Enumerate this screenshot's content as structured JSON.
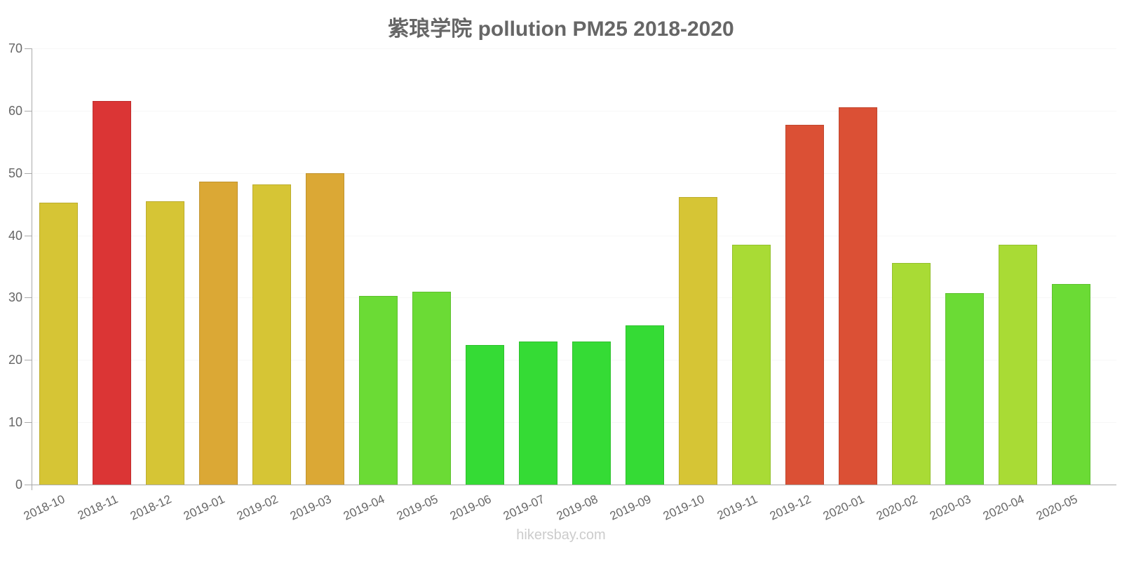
{
  "chart_data": {
    "type": "bar",
    "title": "紫琅学院 pollution PM25 2018-2020",
    "xlabel": "",
    "ylabel": "",
    "ylim": [
      0,
      70
    ],
    "yticks": [
      0,
      10,
      20,
      30,
      40,
      50,
      60,
      70
    ],
    "grid": true,
    "legend": null,
    "categories": [
      "2018-10",
      "2018-11",
      "2018-12",
      "2019-01",
      "2019-02",
      "2019-03",
      "2019-04",
      "2019-05",
      "2019-06",
      "2019-07",
      "2019-08",
      "2019-09",
      "2019-10",
      "2019-11",
      "2019-12",
      "2020-01",
      "2020-02",
      "2020-03",
      "2020-04",
      "2020-05"
    ],
    "values": [
      45.2,
      61.6,
      45.5,
      48.6,
      48.2,
      50.0,
      30.3,
      30.9,
      22.4,
      23.0,
      23.0,
      25.5,
      46.1,
      38.5,
      57.7,
      60.5,
      35.6,
      30.7,
      38.5,
      32.2
    ],
    "colors": [
      "#d6c535",
      "#db3535",
      "#d6c535",
      "#dba835",
      "#d6c535",
      "#dba835",
      "#6bdb35",
      "#6bdb35",
      "#35db35",
      "#35db35",
      "#35db35",
      "#35db35",
      "#d6c535",
      "#a9db35",
      "#db5035",
      "#db5035",
      "#a9db35",
      "#6bdb35",
      "#a9db35",
      "#6bdb35"
    ]
  },
  "footer": {
    "watermark": "hikersbay.com"
  }
}
